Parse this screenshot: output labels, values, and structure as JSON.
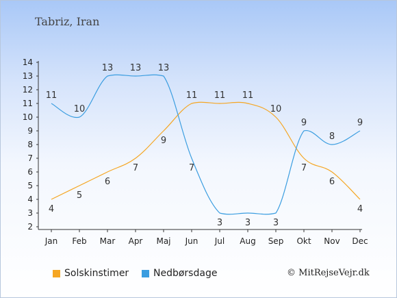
{
  "location": "Tabriz, Iran",
  "copyright": "© MitRejseVejr.dk",
  "chart_data": {
    "type": "line",
    "title": "",
    "xlabel": "",
    "ylabel": "",
    "categories": [
      "Jan",
      "Feb",
      "Mar",
      "Apr",
      "Maj",
      "Jun",
      "Jul",
      "Aug",
      "Sep",
      "Okt",
      "Nov",
      "Dec"
    ],
    "ylim": [
      2,
      14
    ],
    "yticks": [
      "2",
      "3",
      "4",
      "5",
      "6",
      "7",
      "8",
      "9",
      "10",
      "11",
      "12",
      "13",
      "14"
    ],
    "grid": false,
    "legend_position": "bottom-left",
    "series": [
      {
        "name": "Solskinstimer",
        "color": "#f5a623",
        "values": [
          4,
          5,
          6,
          7,
          9,
          11,
          11,
          11,
          10,
          7,
          6,
          4
        ]
      },
      {
        "name": "Nedbørsdage",
        "color": "#3a9de0",
        "values": [
          11,
          10,
          13,
          13,
          13,
          7,
          3,
          3,
          3,
          9,
          8,
          9
        ]
      }
    ]
  }
}
